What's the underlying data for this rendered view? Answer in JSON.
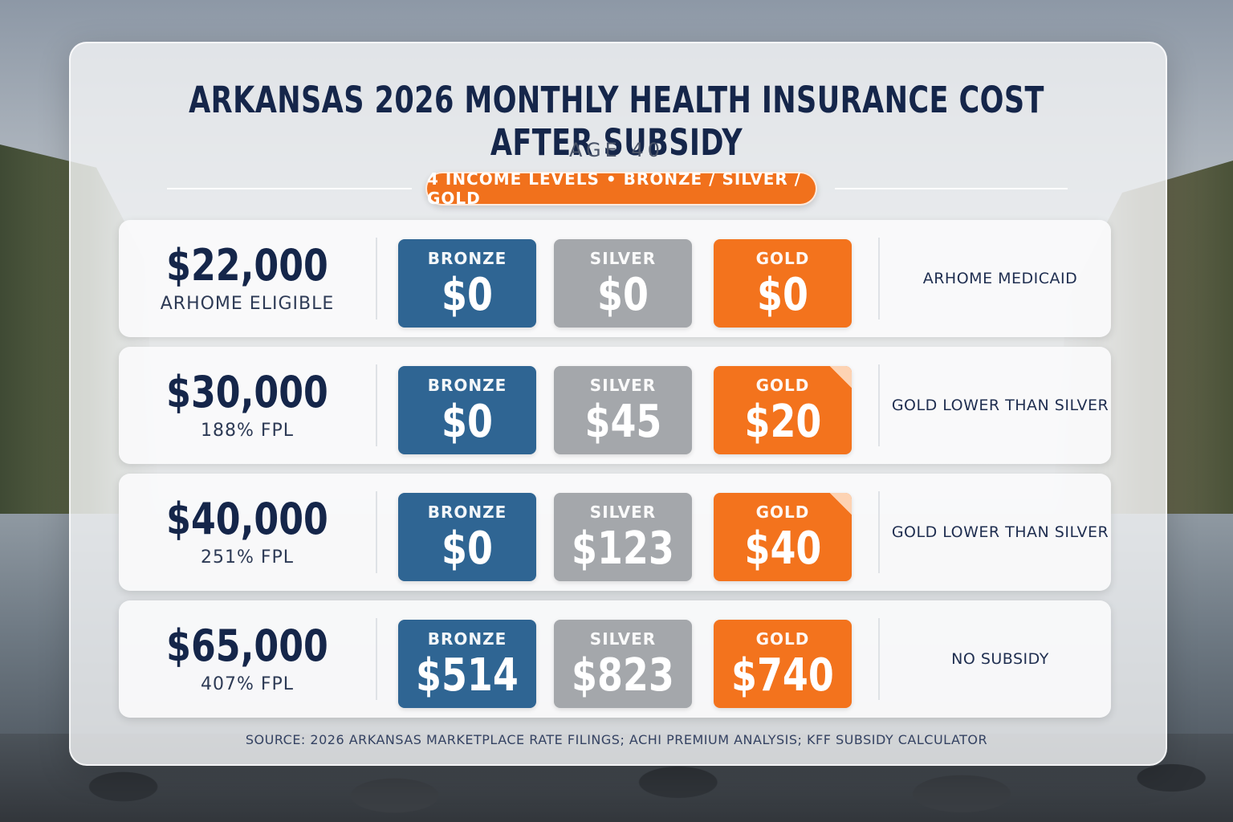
{
  "title": "ARKANSAS 2026 MONTHLY HEALTH INSURANCE COST AFTER SUBSIDY",
  "subtitle": "AGE 40",
  "pill_label": "4 INCOME LEVELS • BRONZE / SILVER / GOLD",
  "tier_labels": {
    "bronze": "BRONZE",
    "silver": "SILVER",
    "gold": "GOLD"
  },
  "colors": {
    "bronze": "#2f6593",
    "silver": "#a4a7ab",
    "gold": "#f3731d",
    "title": "#15264a"
  },
  "rows": [
    {
      "income": "$22,000",
      "detail": "ARHOME ELIGIBLE",
      "bronze": "$0",
      "silver": "$0",
      "gold": "$0",
      "note": "ARHOME MEDICAID"
    },
    {
      "income": "$30,000",
      "detail": "188% FPL",
      "bronze": "$0",
      "silver": "$45",
      "gold": "$20",
      "note": "GOLD LOWER THAN SILVER"
    },
    {
      "income": "$40,000",
      "detail": "251% FPL",
      "bronze": "$0",
      "silver": "$123",
      "gold": "$40",
      "note": "GOLD LOWER THAN SILVER"
    },
    {
      "income": "$65,000",
      "detail": "407% FPL",
      "bronze": "$514",
      "silver": "$823",
      "gold": "$740",
      "note": "NO SUBSIDY"
    }
  ],
  "source": "SOURCE: 2026 ARKANSAS MARKETPLACE RATE FILINGS; ACHI PREMIUM ANALYSIS; KFF SUBSIDY CALCULATOR"
}
